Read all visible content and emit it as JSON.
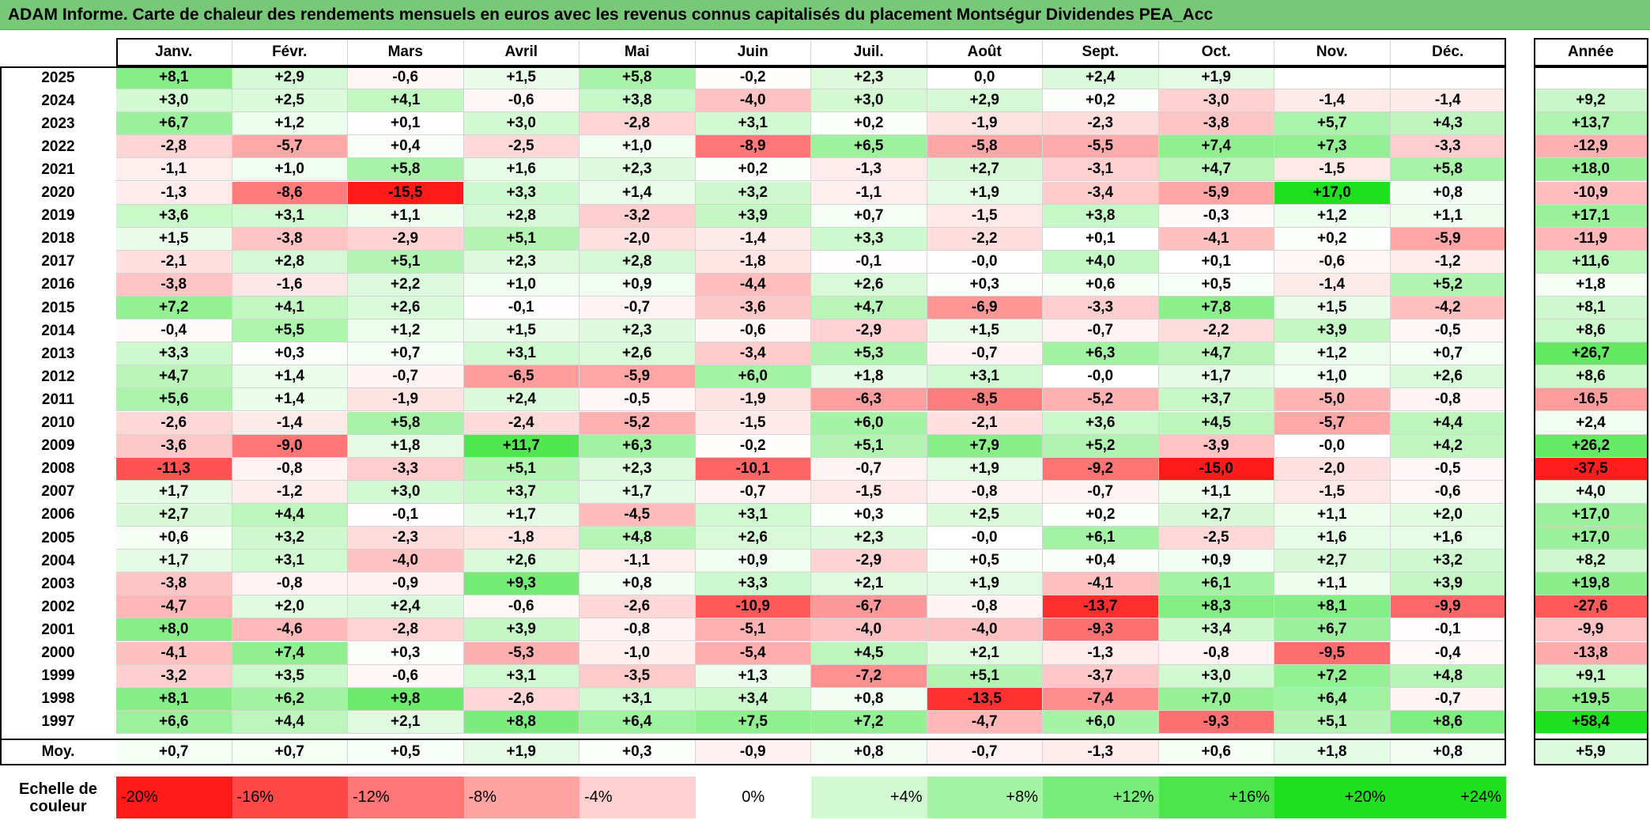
{
  "title": "ADAM Informe. Carte de chaleur des rendements mensuels en euros avec les revenus connus capitalisés du placement Montségur Dividendes PEA_Acc",
  "chart_data": {
    "type": "heatmap",
    "months": [
      "Janv.",
      "Févr.",
      "Mars",
      "Avril",
      "Mai",
      "Juin",
      "Juil.",
      "Août",
      "Sept.",
      "Oct.",
      "Nov.",
      "Déc."
    ],
    "year_header": "Année",
    "rows": [
      {
        "year": "2025",
        "values": [
          "+8,1",
          "+2,9",
          "-0,6",
          "+1,5",
          "+5,8",
          "-0,2",
          "+2,3",
          "0,0",
          "+2,4",
          "+1,9",
          "",
          ""
        ],
        "annual": ""
      },
      {
        "year": "2024",
        "values": [
          "+3,0",
          "+2,5",
          "+4,1",
          "-0,6",
          "+3,8",
          "-4,0",
          "+3,0",
          "+2,9",
          "+0,2",
          "-3,0",
          "-1,4",
          "-1,4"
        ],
        "annual": "+9,2"
      },
      {
        "year": "2023",
        "values": [
          "+6,7",
          "+1,2",
          "+0,1",
          "+3,0",
          "-2,8",
          "+3,1",
          "+0,2",
          "-1,9",
          "-2,3",
          "-3,8",
          "+5,7",
          "+4,3"
        ],
        "annual": "+13,7"
      },
      {
        "year": "2022",
        "values": [
          "-2,8",
          "-5,7",
          "+0,4",
          "-2,5",
          "+1,0",
          "-8,9",
          "+6,5",
          "-5,8",
          "-5,5",
          "+7,4",
          "+7,3",
          "-3,3"
        ],
        "annual": "-12,9"
      },
      {
        "year": "2021",
        "values": [
          "-1,1",
          "+1,0",
          "+5,8",
          "+1,6",
          "+2,3",
          "+0,2",
          "-1,3",
          "+2,7",
          "-3,1",
          "+4,7",
          "-1,5",
          "+5,8"
        ],
        "annual": "+18,0"
      },
      {
        "year": "2020",
        "values": [
          "-1,3",
          "-8,6",
          "-15,5",
          "+3,3",
          "+1,4",
          "+3,2",
          "-1,1",
          "+1,9",
          "-3,4",
          "-5,9",
          "+17,0",
          "+0,8"
        ],
        "annual": "-10,9"
      },
      {
        "year": "2019",
        "values": [
          "+3,6",
          "+3,1",
          "+1,1",
          "+2,8",
          "-3,2",
          "+3,9",
          "+0,7",
          "-1,5",
          "+3,8",
          "-0,3",
          "+1,2",
          "+1,1"
        ],
        "annual": "+17,1"
      },
      {
        "year": "2018",
        "values": [
          "+1,5",
          "-3,8",
          "-2,9",
          "+5,1",
          "-2,0",
          "-1,4",
          "+3,3",
          "-2,2",
          "+0,1",
          "-4,1",
          "+0,2",
          "-5,9"
        ],
        "annual": "-11,9"
      },
      {
        "year": "2017",
        "values": [
          "-2,1",
          "+2,8",
          "+5,1",
          "+2,3",
          "+2,8",
          "-1,8",
          "-0,1",
          "-0,0",
          "+4,0",
          "+0,1",
          "-0,6",
          "-1,2"
        ],
        "annual": "+11,6"
      },
      {
        "year": "2016",
        "values": [
          "-3,8",
          "-1,6",
          "+2,2",
          "+1,0",
          "+0,9",
          "-4,4",
          "+2,6",
          "+0,3",
          "+0,6",
          "+0,5",
          "-1,4",
          "+5,2"
        ],
        "annual": "+1,8"
      },
      {
        "year": "2015",
        "values": [
          "+7,2",
          "+4,1",
          "+2,6",
          "-0,1",
          "-0,7",
          "-3,6",
          "+4,7",
          "-6,9",
          "-3,3",
          "+7,8",
          "+1,5",
          "-4,2"
        ],
        "annual": "+8,1"
      },
      {
        "year": "2014",
        "values": [
          "-0,4",
          "+5,5",
          "+1,2",
          "+1,5",
          "+2,3",
          "-0,6",
          "-2,9",
          "+1,5",
          "-0,7",
          "-2,2",
          "+3,9",
          "-0,5"
        ],
        "annual": "+8,6"
      },
      {
        "year": "2013",
        "values": [
          "+3,3",
          "+0,3",
          "+0,7",
          "+3,1",
          "+2,6",
          "-3,4",
          "+5,3",
          "-0,7",
          "+6,3",
          "+4,7",
          "+1,2",
          "+0,7"
        ],
        "annual": "+26,7"
      },
      {
        "year": "2012",
        "values": [
          "+4,7",
          "+1,4",
          "-0,7",
          "-6,5",
          "-5,9",
          "+6,0",
          "+1,8",
          "+3,1",
          "-0,0",
          "+1,7",
          "+1,0",
          "+2,6"
        ],
        "annual": "+8,6"
      },
      {
        "year": "2011",
        "values": [
          "+5,6",
          "+1,4",
          "-1,9",
          "+2,4",
          "-0,5",
          "-1,9",
          "-6,3",
          "-8,5",
          "-5,2",
          "+3,7",
          "-5,0",
          "-0,8"
        ],
        "annual": "-16,5"
      },
      {
        "year": "2010",
        "values": [
          "-2,6",
          "-1,4",
          "+5,8",
          "-2,4",
          "-5,2",
          "-1,5",
          "+6,0",
          "-2,1",
          "+3,6",
          "+4,5",
          "-5,7",
          "+4,4"
        ],
        "annual": "+2,4"
      },
      {
        "year": "2009",
        "values": [
          "-3,6",
          "-9,0",
          "+1,8",
          "+11,7",
          "+6,3",
          "-0,2",
          "+5,1",
          "+7,9",
          "+5,2",
          "-3,9",
          "-0,0",
          "+4,2"
        ],
        "annual": "+26,2"
      },
      {
        "year": "2008",
        "values": [
          "-11,3",
          "-0,8",
          "-3,3",
          "+5,1",
          "+2,3",
          "-10,1",
          "-0,7",
          "+1,9",
          "-9,2",
          "-15,0",
          "-2,0",
          "-0,5"
        ],
        "annual": "-37,5"
      },
      {
        "year": "2007",
        "values": [
          "+1,7",
          "-1,2",
          "+3,0",
          "+3,7",
          "+1,7",
          "-0,7",
          "-1,5",
          "-0,8",
          "-0,7",
          "+1,1",
          "-1,5",
          "-0,6"
        ],
        "annual": "+4,0"
      },
      {
        "year": "2006",
        "values": [
          "+2,7",
          "+4,4",
          "-0,1",
          "+1,7",
          "-4,5",
          "+3,1",
          "+0,3",
          "+2,5",
          "+0,2",
          "+2,7",
          "+1,1",
          "+2,0"
        ],
        "annual": "+17,0"
      },
      {
        "year": "2005",
        "values": [
          "+0,6",
          "+3,2",
          "-2,3",
          "-1,8",
          "+4,8",
          "+2,6",
          "+2,3",
          "-0,0",
          "+6,1",
          "-2,5",
          "+1,6",
          "+1,6"
        ],
        "annual": "+17,0"
      },
      {
        "year": "2004",
        "values": [
          "+1,7",
          "+3,1",
          "-4,0",
          "+2,6",
          "-1,1",
          "+0,9",
          "-2,9",
          "+0,5",
          "+0,4",
          "+0,9",
          "+2,7",
          "+3,2"
        ],
        "annual": "+8,2"
      },
      {
        "year": "2003",
        "values": [
          "-3,8",
          "-0,8",
          "-0,9",
          "+9,3",
          "+0,8",
          "+3,3",
          "+2,1",
          "+1,9",
          "-4,1",
          "+6,1",
          "+1,1",
          "+3,9"
        ],
        "annual": "+19,8"
      },
      {
        "year": "2002",
        "values": [
          "-4,7",
          "+2,0",
          "+2,4",
          "-0,6",
          "-2,6",
          "-10,9",
          "-6,7",
          "-0,8",
          "-13,7",
          "+8,3",
          "+8,1",
          "-9,9"
        ],
        "annual": "-27,6"
      },
      {
        "year": "2001",
        "values": [
          "+8,0",
          "-4,6",
          "-2,8",
          "+3,9",
          "-0,8",
          "-5,1",
          "-4,0",
          "-4,0",
          "-9,3",
          "+3,4",
          "+6,7",
          "-0,1"
        ],
        "annual": "-9,9"
      },
      {
        "year": "2000",
        "values": [
          "-4,1",
          "+7,4",
          "+0,3",
          "-5,3",
          "-1,0",
          "-5,4",
          "+4,5",
          "+2,1",
          "-1,3",
          "-0,8",
          "-9,5",
          "-0,4"
        ],
        "annual": "-13,8"
      },
      {
        "year": "1999",
        "values": [
          "-3,2",
          "+3,5",
          "-0,6",
          "+3,1",
          "-3,5",
          "+1,3",
          "-7,2",
          "+5,1",
          "-3,7",
          "+3,0",
          "+7,2",
          "+4,8"
        ],
        "annual": "+9,1"
      },
      {
        "year": "1998",
        "values": [
          "+8,1",
          "+6,2",
          "+9,8",
          "-2,6",
          "+3,1",
          "+3,4",
          "+0,8",
          "-13,5",
          "-7,4",
          "+7,0",
          "+6,4",
          "-0,7"
        ],
        "annual": "+19,5"
      },
      {
        "year": "1997",
        "values": [
          "+6,6",
          "+4,4",
          "+2,1",
          "+8,8",
          "+6,4",
          "+7,5",
          "+7,2",
          "-4,7",
          "+6,0",
          "-9,3",
          "+5,1",
          "+8,6"
        ],
        "annual": "+58,4"
      }
    ],
    "average": {
      "label": "Moy.",
      "values": [
        "+0,7",
        "+0,7",
        "+0,5",
        "+1,9",
        "+0,3",
        "-0,9",
        "+0,8",
        "-0,7",
        "-1,3",
        "+0,6",
        "+1,8",
        "+0,8"
      ],
      "annual": "+5,9"
    },
    "color_scale": {
      "label_line1": "Echelle de",
      "label_line2": "couleur",
      "steps": [
        {
          "label": "-20%",
          "value": -20
        },
        {
          "label": "-16%",
          "value": -16
        },
        {
          "label": "-12%",
          "value": -12
        },
        {
          "label": "-8%",
          "value": -8
        },
        {
          "label": "-4%",
          "value": -4
        },
        {
          "label": "0%",
          "value": 0
        },
        {
          "label": "+4%",
          "value": 4
        },
        {
          "label": "+8%",
          "value": 8
        },
        {
          "label": "+12%",
          "value": 12
        },
        {
          "label": "+16%",
          "value": 16
        },
        {
          "label": "+20%",
          "value": 20
        },
        {
          "label": "+24%",
          "value": 24
        }
      ]
    },
    "colors": {
      "negative_max": "#ff1a1a",
      "positive_max": "#1fe01f",
      "neutral": "#ffffff",
      "title_band": "#77c877"
    }
  }
}
